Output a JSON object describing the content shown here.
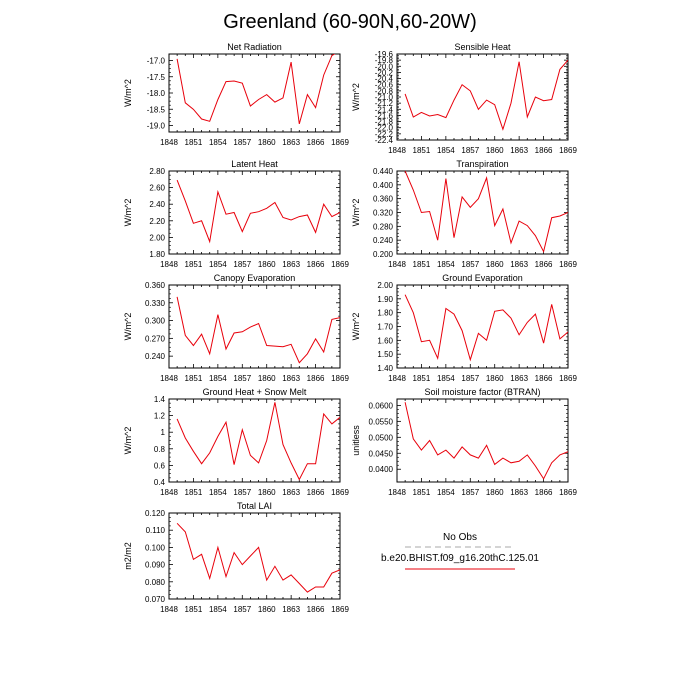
{
  "figure": {
    "title": "Greenland (60-90N,60-20W)"
  },
  "chart_data": [
    {
      "type": "line",
      "title": "Net Radiation",
      "ylabel": "W/m^2",
      "xlim": [
        1848,
        1869
      ],
      "ylim": [
        -19.2,
        -16.8
      ],
      "xticks": [
        1848,
        1851,
        1854,
        1857,
        1860,
        1863,
        1866,
        1869
      ],
      "yticks": [
        -19.0,
        -18.5,
        -18.0,
        -17.5,
        -17.0
      ],
      "ytick_labels": [
        "-19.0",
        "-18.5",
        "-18.0",
        "-17.5",
        "-17.0"
      ],
      "x": [
        1849,
        1850,
        1851,
        1852,
        1853,
        1854,
        1855,
        1856,
        1857,
        1858,
        1859,
        1860,
        1861,
        1862,
        1863,
        1864,
        1865,
        1866,
        1867,
        1868,
        1869
      ],
      "series": [
        {
          "color": "#e8000b",
          "values": [
            -16.95,
            -18.3,
            -18.5,
            -18.8,
            -18.87,
            -18.2,
            -17.65,
            -17.63,
            -17.7,
            -18.4,
            -18.2,
            -18.05,
            -18.28,
            -18.15,
            -17.05,
            -18.95,
            -18.05,
            -18.45,
            -17.45,
            -16.85,
            -16.7
          ]
        }
      ]
    },
    {
      "type": "line",
      "title": "Sensible Heat",
      "ylabel": "W/m^2",
      "xlim": [
        1848,
        1869
      ],
      "ylim": [
        -22.4,
        -19.6
      ],
      "xticks": [
        1848,
        1851,
        1854,
        1857,
        1860,
        1863,
        1866,
        1869
      ],
      "yticks": [
        -22.4,
        -22.2,
        -22.0,
        -21.8,
        -21.6,
        -21.4,
        -21.2,
        -21.0,
        -20.8,
        -20.6,
        -20.4,
        -20.2,
        -20.0,
        -19.8,
        -19.6
      ],
      "ytick_labels": [
        "-22.4",
        "-22.2",
        "-22.0",
        "-21.8",
        "-21.6",
        "-21.4",
        "-21.2",
        "-21.0",
        "-20.8",
        "-20.6",
        "-20.4",
        "-20.2",
        "-20.0",
        "-19.8",
        "-19.6"
      ],
      "x": [
        1849,
        1850,
        1851,
        1852,
        1853,
        1854,
        1855,
        1856,
        1857,
        1858,
        1859,
        1860,
        1861,
        1862,
        1863,
        1864,
        1865,
        1866,
        1867,
        1868,
        1869
      ],
      "series": [
        {
          "color": "#e8000b",
          "values": [
            -20.9,
            -21.65,
            -21.5,
            -21.62,
            -21.57,
            -21.67,
            -21.1,
            -20.6,
            -20.8,
            -21.4,
            -21.1,
            -21.25,
            -22.05,
            -21.2,
            -19.85,
            -21.65,
            -21.0,
            -21.12,
            -21.08,
            -20.1,
            -19.8
          ]
        }
      ]
    },
    {
      "type": "line",
      "title": "Latent Heat",
      "ylabel": "W/m^2",
      "xlim": [
        1848,
        1869
      ],
      "ylim": [
        1.8,
        2.8
      ],
      "xticks": [
        1848,
        1851,
        1854,
        1857,
        1860,
        1863,
        1866,
        1869
      ],
      "yticks": [
        1.8,
        2.0,
        2.2,
        2.4,
        2.6,
        2.8
      ],
      "ytick_labels": [
        "1.80",
        "2.00",
        "2.20",
        "2.40",
        "2.60",
        "2.80"
      ],
      "x": [
        1849,
        1850,
        1851,
        1852,
        1853,
        1854,
        1855,
        1856,
        1857,
        1858,
        1859,
        1860,
        1861,
        1862,
        1863,
        1864,
        1865,
        1866,
        1867,
        1868,
        1869
      ],
      "series": [
        {
          "color": "#e8000b",
          "values": [
            2.69,
            2.44,
            2.17,
            2.2,
            1.95,
            2.55,
            2.28,
            2.3,
            2.07,
            2.29,
            2.31,
            2.35,
            2.42,
            2.24,
            2.21,
            2.25,
            2.27,
            2.06,
            2.4,
            2.25,
            2.3
          ]
        }
      ]
    },
    {
      "type": "line",
      "title": "Transpiration",
      "ylabel": "W/m^2",
      "xlim": [
        1848,
        1869
      ],
      "ylim": [
        0.2,
        0.44
      ],
      "xticks": [
        1848,
        1851,
        1854,
        1857,
        1860,
        1863,
        1866,
        1869
      ],
      "yticks": [
        0.2,
        0.24,
        0.28,
        0.32,
        0.36,
        0.4,
        0.44
      ],
      "ytick_labels": [
        "0.200",
        "0.240",
        "0.280",
        "0.320",
        "0.360",
        "0.400",
        "0.440"
      ],
      "x": [
        1849,
        1850,
        1851,
        1852,
        1853,
        1854,
        1855,
        1856,
        1857,
        1858,
        1859,
        1860,
        1861,
        1862,
        1863,
        1864,
        1865,
        1866,
        1867,
        1868,
        1869
      ],
      "series": [
        {
          "color": "#e8000b",
          "values": [
            0.44,
            0.385,
            0.32,
            0.323,
            0.24,
            0.418,
            0.247,
            0.365,
            0.335,
            0.36,
            0.42,
            0.282,
            0.33,
            0.232,
            0.295,
            0.282,
            0.253,
            0.207,
            0.305,
            0.31,
            0.32
          ]
        }
      ]
    },
    {
      "type": "line",
      "title": "Canopy Evaporation",
      "ylabel": "W/m^2",
      "xlim": [
        1848,
        1869
      ],
      "ylim": [
        0.22,
        0.36
      ],
      "xticks": [
        1848,
        1851,
        1854,
        1857,
        1860,
        1863,
        1866,
        1869
      ],
      "yticks": [
        0.24,
        0.27,
        0.3,
        0.33,
        0.36
      ],
      "ytick_labels": [
        "0.240",
        "0.270",
        "0.300",
        "0.330",
        "0.360"
      ],
      "x": [
        1849,
        1850,
        1851,
        1852,
        1853,
        1854,
        1855,
        1856,
        1857,
        1858,
        1859,
        1860,
        1861,
        1862,
        1863,
        1864,
        1865,
        1866,
        1867,
        1868,
        1869
      ],
      "series": [
        {
          "color": "#e8000b",
          "values": [
            0.34,
            0.275,
            0.258,
            0.277,
            0.244,
            0.31,
            0.252,
            0.279,
            0.281,
            0.289,
            0.295,
            0.258,
            0.257,
            0.256,
            0.26,
            0.229,
            0.244,
            0.269,
            0.247,
            0.302,
            0.305
          ]
        }
      ]
    },
    {
      "type": "line",
      "title": "Ground Evaporation",
      "ylabel": "W/m^2",
      "xlim": [
        1848,
        1869
      ],
      "ylim": [
        1.4,
        2.0
      ],
      "xticks": [
        1848,
        1851,
        1854,
        1857,
        1860,
        1863,
        1866,
        1869
      ],
      "yticks": [
        1.4,
        1.5,
        1.6,
        1.7,
        1.8,
        1.9,
        2.0
      ],
      "ytick_labels": [
        "1.40",
        "1.50",
        "1.60",
        "1.70",
        "1.80",
        "1.90",
        "2.00"
      ],
      "x": [
        1849,
        1850,
        1851,
        1852,
        1853,
        1854,
        1855,
        1856,
        1857,
        1858,
        1859,
        1860,
        1861,
        1862,
        1863,
        1864,
        1865,
        1866,
        1867,
        1868,
        1869
      ],
      "series": [
        {
          "color": "#e8000b",
          "values": [
            1.93,
            1.8,
            1.59,
            1.6,
            1.47,
            1.83,
            1.79,
            1.67,
            1.46,
            1.65,
            1.6,
            1.81,
            1.82,
            1.76,
            1.64,
            1.73,
            1.79,
            1.58,
            1.86,
            1.61,
            1.66
          ]
        }
      ]
    },
    {
      "type": "line",
      "title": "Ground Heat + Snow Melt",
      "ylabel": "W/m^2",
      "xlim": [
        1848,
        1869
      ],
      "ylim": [
        0.4,
        1.4
      ],
      "xticks": [
        1848,
        1851,
        1854,
        1857,
        1860,
        1863,
        1866,
        1869
      ],
      "yticks": [
        0.4,
        0.6,
        0.8,
        1.0,
        1.2,
        1.4
      ],
      "ytick_labels": [
        "0.4",
        "0.6",
        "0.8",
        "1",
        "1.2",
        "1.4"
      ],
      "x": [
        1849,
        1850,
        1851,
        1852,
        1853,
        1854,
        1855,
        1856,
        1857,
        1858,
        1859,
        1860,
        1861,
        1862,
        1863,
        1864,
        1865,
        1866,
        1867,
        1868,
        1869
      ],
      "series": [
        {
          "color": "#e8000b",
          "values": [
            1.16,
            0.93,
            0.77,
            0.62,
            0.75,
            0.95,
            1.12,
            0.61,
            1.03,
            0.72,
            0.63,
            0.9,
            1.36,
            0.85,
            0.63,
            0.43,
            0.62,
            0.62,
            1.22,
            1.1,
            1.18
          ]
        }
      ]
    },
    {
      "type": "line",
      "title": "Soil moisture factor (BTRAN)",
      "ylabel": "unitless",
      "xlim": [
        1848,
        1869
      ],
      "ylim": [
        0.036,
        0.062
      ],
      "xticks": [
        1848,
        1851,
        1854,
        1857,
        1860,
        1863,
        1866,
        1869
      ],
      "yticks": [
        0.04,
        0.045,
        0.05,
        0.055,
        0.06
      ],
      "ytick_labels": [
        "0.0400",
        "0.0450",
        "0.0500",
        "0.0550",
        "0.0600"
      ],
      "x": [
        1849,
        1850,
        1851,
        1852,
        1853,
        1854,
        1855,
        1856,
        1857,
        1858,
        1859,
        1860,
        1861,
        1862,
        1863,
        1864,
        1865,
        1866,
        1867,
        1868,
        1869
      ],
      "series": [
        {
          "color": "#e8000b",
          "values": [
            0.061,
            0.0495,
            0.046,
            0.049,
            0.0445,
            0.046,
            0.0435,
            0.047,
            0.0445,
            0.0435,
            0.0475,
            0.0415,
            0.0435,
            0.042,
            0.0425,
            0.0445,
            0.041,
            0.037,
            0.042,
            0.0445,
            0.0455
          ]
        }
      ]
    },
    {
      "type": "line",
      "title": "Total LAI",
      "ylabel": "m2/m2",
      "xlim": [
        1848,
        1869
      ],
      "ylim": [
        0.07,
        0.12
      ],
      "xticks": [
        1848,
        1851,
        1854,
        1857,
        1860,
        1863,
        1866,
        1869
      ],
      "yticks": [
        0.07,
        0.08,
        0.09,
        0.1,
        0.11,
        0.12
      ],
      "ytick_labels": [
        "0.070",
        "0.080",
        "0.090",
        "0.100",
        "0.110",
        "0.120"
      ],
      "x": [
        1849,
        1850,
        1851,
        1852,
        1853,
        1854,
        1855,
        1856,
        1857,
        1858,
        1859,
        1860,
        1861,
        1862,
        1863,
        1864,
        1865,
        1866,
        1867,
        1868,
        1869
      ],
      "series": [
        {
          "color": "#e8000b",
          "values": [
            0.114,
            0.109,
            0.093,
            0.096,
            0.082,
            0.1,
            0.083,
            0.097,
            0.09,
            0.095,
            0.1,
            0.081,
            0.089,
            0.081,
            0.084,
            0.079,
            0.074,
            0.077,
            0.077,
            0.085,
            0.087
          ]
        }
      ]
    }
  ],
  "legend": {
    "entries": [
      {
        "label": "No Obs",
        "color": "#aaaaaa",
        "dash": "dashed"
      },
      {
        "label": "b.e20.BHIST.f09_g16.20thC.125.01",
        "color": "#e8000b",
        "dash": "solid"
      }
    ]
  }
}
